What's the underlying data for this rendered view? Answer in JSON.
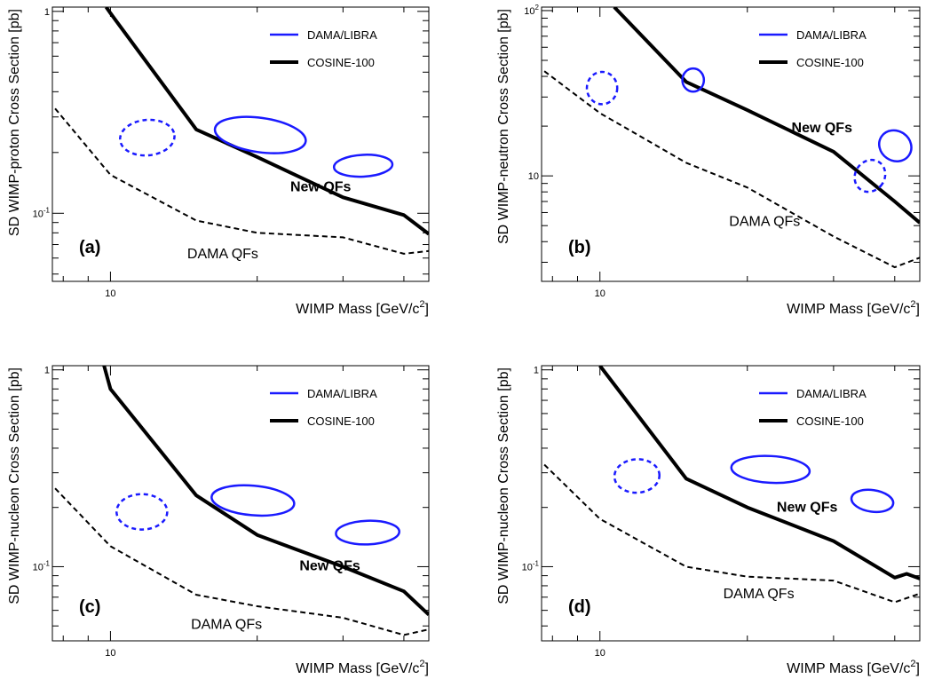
{
  "chart_data": [
    {
      "type": "line",
      "panel_label": "(a)",
      "xlabel": "WIMP Mass [GeV/c",
      "xlabel_sup": "2",
      "xlabel_end": "]",
      "ylabel": "SD WIMP-proton Cross Section [pb]",
      "xscale": "log",
      "yscale": "log",
      "xlim": [
        7.6,
        45
      ],
      "ylim": [
        0.046,
        1.05
      ],
      "x_ticks": [
        {
          "value": 10,
          "label": "10"
        }
      ],
      "y_ticks": [
        {
          "value": 1,
          "label": "1"
        },
        {
          "value": 0.1,
          "label": "10",
          "sup": "-1"
        }
      ],
      "legend": [
        {
          "label": "DAMA/LIBRA",
          "color": "#1a1aff",
          "style": "solid"
        },
        {
          "label": "COSINE-100",
          "color": "#000000",
          "style": "solid"
        }
      ],
      "series": [
        {
          "name": "COSINE-100",
          "color": "#000000",
          "style": "solid",
          "x": [
            9.8,
            10,
            15,
            20,
            30,
            40,
            45
          ],
          "y": [
            1.05,
            0.98,
            0.26,
            0.19,
            0.12,
            0.098,
            0.079
          ]
        },
        {
          "name": "DAMA QFs",
          "color": "#000000",
          "style": "dashed",
          "x": [
            7.7,
            10,
            15,
            20,
            30,
            40,
            45
          ],
          "y": [
            0.33,
            0.155,
            0.092,
            0.08,
            0.076,
            0.063,
            0.065
          ]
        }
      ],
      "regions": [
        {
          "label": "DAMA/LIBRA",
          "style": "dashed",
          "color": "#1a1aff",
          "center": [
            11.9,
            0.237
          ],
          "rx_decades": 0.056,
          "ry_decades": 0.088,
          "tilt": -5
        },
        {
          "label": "DAMA/LIBRA",
          "style": "solid",
          "color": "#1a1aff",
          "center": [
            20.3,
            0.244
          ],
          "rx_decades": 0.094,
          "ry_decades": 0.085,
          "tilt": 8
        },
        {
          "label": "DAMA/LIBRA",
          "style": "solid",
          "color": "#1a1aff",
          "center": [
            33.0,
            0.172
          ],
          "rx_decades": 0.06,
          "ry_decades": 0.054,
          "tilt": -3
        }
      ],
      "annotations": [
        {
          "text": "New QFs",
          "x": 27,
          "y": 0.135,
          "bold": true
        },
        {
          "text": "DAMA QFs",
          "x": 17,
          "y": 0.063,
          "bold": false
        }
      ]
    },
    {
      "type": "line",
      "panel_label": "(b)",
      "xlabel": "WIMP Mass [GeV/c",
      "xlabel_sup": "2",
      "xlabel_end": "]",
      "ylabel": "SD WIMP-neutron Cross Section [pb]",
      "xscale": "log",
      "yscale": "log",
      "xlim": [
        7.6,
        45
      ],
      "ylim": [
        2.3,
        105
      ],
      "x_ticks": [
        {
          "value": 10,
          "label": "10"
        }
      ],
      "y_ticks": [
        {
          "value": 100,
          "label": "10",
          "sup": "2"
        },
        {
          "value": 10,
          "label": "10"
        }
      ],
      "legend": [
        {
          "label": "DAMA/LIBRA",
          "color": "#1a1aff",
          "style": "solid"
        },
        {
          "label": "COSINE-100",
          "color": "#000000",
          "style": "solid"
        }
      ],
      "series": [
        {
          "name": "COSINE-100",
          "color": "#000000",
          "style": "solid",
          "x": [
            10.7,
            15,
            20,
            30,
            40,
            45
          ],
          "y": [
            105,
            37,
            25,
            14,
            7,
            5.2
          ]
        },
        {
          "name": "DAMA QFs",
          "color": "#000000",
          "style": "dashed",
          "x": [
            7.7,
            10,
            15,
            20,
            30,
            40,
            45
          ],
          "y": [
            43,
            24,
            12,
            8.5,
            4.3,
            2.8,
            3.2
          ]
        }
      ],
      "regions": [
        {
          "label": "DAMA/LIBRA",
          "style": "dashed",
          "color": "#1a1aff",
          "center": [
            10.1,
            34
          ],
          "rx_decades": 0.031,
          "ry_decades": 0.098,
          "tilt": 0
        },
        {
          "label": "DAMA/LIBRA",
          "style": "solid",
          "color": "#1a1aff",
          "center": [
            15.5,
            38
          ],
          "rx_decades": 0.022,
          "ry_decades": 0.07,
          "tilt": 0
        },
        {
          "label": "DAMA/LIBRA",
          "style": "dashed",
          "color": "#1a1aff",
          "center": [
            35.6,
            10.0
          ],
          "rx_decades": 0.03,
          "ry_decades": 0.1,
          "tilt": 35
        },
        {
          "label": "DAMA/LIBRA",
          "style": "solid",
          "color": "#1a1aff",
          "center": [
            40.1,
            15.2
          ],
          "rx_decades": 0.034,
          "ry_decades": 0.09,
          "tilt": 35
        }
      ],
      "annotations": [
        {
          "text": "New QFs",
          "x": 28.4,
          "y": 19.5,
          "bold": true
        },
        {
          "text": "DAMA QFs",
          "x": 21.7,
          "y": 5.3,
          "bold": false
        }
      ]
    },
    {
      "type": "line",
      "panel_label": "(c)",
      "xlabel": "WIMP Mass [GeV/c",
      "xlabel_sup": "2",
      "xlabel_end": "]",
      "ylabel": "SD WIMP-nucleon Cross Section [pb]",
      "xscale": "log",
      "yscale": "log",
      "xlim": [
        7.6,
        45
      ],
      "ylim": [
        0.042,
        1.05
      ],
      "x_ticks": [
        {
          "value": 10,
          "label": "10"
        }
      ],
      "y_ticks": [
        {
          "value": 1,
          "label": "1"
        },
        {
          "value": 0.1,
          "label": "10",
          "sup": "-1"
        }
      ],
      "legend": [
        {
          "label": "DAMA/LIBRA",
          "color": "#1a1aff",
          "style": "solid"
        },
        {
          "label": "COSINE-100",
          "color": "#000000",
          "style": "solid"
        }
      ],
      "series": [
        {
          "name": "COSINE-100",
          "color": "#000000",
          "style": "solid",
          "x": [
            9.7,
            10,
            15,
            20,
            30,
            40,
            45
          ],
          "y": [
            1.05,
            0.8,
            0.23,
            0.145,
            0.1,
            0.075,
            0.057
          ]
        },
        {
          "name": "DAMA QFs",
          "color": "#000000",
          "style": "dashed",
          "x": [
            7.7,
            10,
            15,
            20,
            30,
            40,
            45
          ],
          "y": [
            0.25,
            0.127,
            0.072,
            0.063,
            0.055,
            0.045,
            0.048
          ]
        }
      ],
      "regions": [
        {
          "label": "DAMA/LIBRA",
          "style": "dashed",
          "color": "#1a1aff",
          "center": [
            11.6,
            0.19
          ],
          "rx_decades": 0.052,
          "ry_decades": 0.09,
          "tilt": 0
        },
        {
          "label": "DAMA/LIBRA",
          "style": "solid",
          "color": "#1a1aff",
          "center": [
            19.6,
            0.217
          ],
          "rx_decades": 0.085,
          "ry_decades": 0.075,
          "tilt": 5
        },
        {
          "label": "DAMA/LIBRA",
          "style": "solid",
          "color": "#1a1aff",
          "center": [
            33.7,
            0.149
          ],
          "rx_decades": 0.065,
          "ry_decades": 0.06,
          "tilt": -2
        }
      ],
      "annotations": [
        {
          "text": "New QFs",
          "x": 28.2,
          "y": 0.101,
          "bold": true
        },
        {
          "text": "DAMA QFs",
          "x": 17.3,
          "y": 0.051,
          "bold": false
        }
      ]
    },
    {
      "type": "line",
      "panel_label": "(d)",
      "xlabel": "WIMP Mass [GeV/c",
      "xlabel_sup": "2",
      "xlabel_end": "]",
      "ylabel": "SD WIMP-nucleon Cross Section [pb]",
      "xscale": "log",
      "yscale": "log",
      "xlim": [
        7.6,
        45
      ],
      "ylim": [
        0.042,
        1.05
      ],
      "x_ticks": [
        {
          "value": 10,
          "label": "10"
        }
      ],
      "y_ticks": [
        {
          "value": 1,
          "label": "1"
        },
        {
          "value": 0.1,
          "label": "10",
          "sup": "-1"
        }
      ],
      "legend": [
        {
          "label": "DAMA/LIBRA",
          "color": "#1a1aff",
          "style": "solid"
        },
        {
          "label": "COSINE-100",
          "color": "#000000",
          "style": "solid"
        }
      ],
      "series": [
        {
          "name": "COSINE-100",
          "color": "#000000",
          "style": "solid",
          "x": [
            10,
            15,
            20,
            30,
            40,
            42.3,
            45
          ],
          "y": [
            1.05,
            0.28,
            0.2,
            0.135,
            0.088,
            0.092,
            0.087
          ]
        },
        {
          "name": "DAMA QFs",
          "color": "#000000",
          "style": "dashed",
          "x": [
            7.7,
            10,
            15,
            20,
            30,
            40,
            45
          ],
          "y": [
            0.33,
            0.175,
            0.1,
            0.089,
            0.085,
            0.066,
            0.073
          ]
        }
      ],
      "regions": [
        {
          "label": "DAMA/LIBRA",
          "style": "dashed",
          "color": "#1a1aff",
          "center": [
            11.9,
            0.289
          ],
          "rx_decades": 0.046,
          "ry_decades": 0.085,
          "tilt": -3
        },
        {
          "label": "DAMA/LIBRA",
          "style": "solid",
          "color": "#1a1aff",
          "center": [
            22.3,
            0.312
          ],
          "rx_decades": 0.08,
          "ry_decades": 0.068,
          "tilt": 3
        },
        {
          "label": "DAMA/LIBRA",
          "style": "solid",
          "color": "#1a1aff",
          "center": [
            36.0,
            0.216
          ],
          "rx_decades": 0.043,
          "ry_decades": 0.055,
          "tilt": 8
        }
      ],
      "annotations": [
        {
          "text": "New QFs",
          "x": 26.5,
          "y": 0.2,
          "bold": true
        },
        {
          "text": "DAMA QFs",
          "x": 21.1,
          "y": 0.073,
          "bold": false
        }
      ]
    }
  ]
}
